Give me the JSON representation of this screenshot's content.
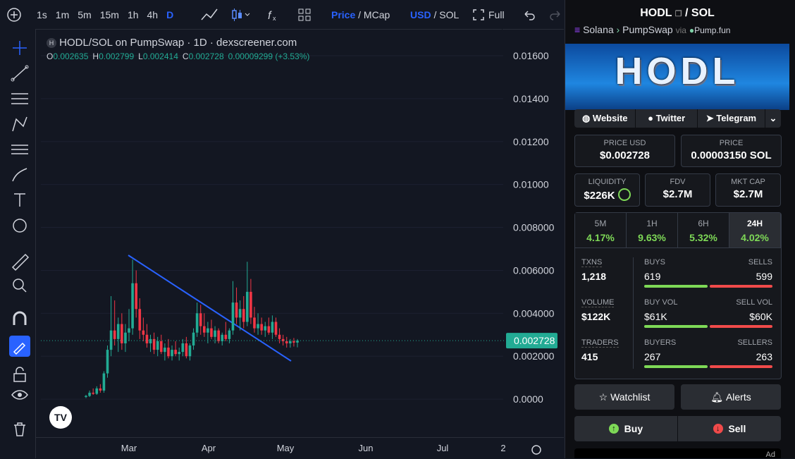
{
  "toolbar": {
    "intervals": [
      "1s",
      "1m",
      "5m",
      "15m",
      "1h",
      "4h",
      "D"
    ],
    "price": "Price",
    "price_sep": "/",
    "mcap": "MCap",
    "usd": "USD",
    "currency_sep": "/",
    "sol": "SOL",
    "full": "Full"
  },
  "chart": {
    "type": "candlestick",
    "title": "HODL/SOL on PumpSwap · 1D · dexscreener.com",
    "ohlc_labels": [
      "O",
      "H",
      "L",
      "C"
    ],
    "change": "0.00009299 (+3.53%)",
    "candles": [
      [
        0.0001,
        0.0002,
        5e-05,
        0.00015
      ],
      [
        0.00015,
        0.0004,
        0.0001,
        0.0003
      ],
      [
        0.0003,
        0.0005,
        0.0002,
        0.00025
      ],
      [
        0.00025,
        0.0006,
        0.0002,
        0.0005
      ],
      [
        0.0005,
        0.0007,
        0.0003,
        0.0004
      ],
      [
        0.0004,
        0.0013,
        0.0003,
        0.0012
      ],
      [
        0.0012,
        0.0025,
        0.001,
        0.0023
      ],
      [
        0.0023,
        0.0048,
        0.002,
        0.0032
      ],
      [
        0.0032,
        0.0046,
        0.0025,
        0.0028
      ],
      [
        0.0028,
        0.0038,
        0.0022,
        0.0035
      ],
      [
        0.0035,
        0.004,
        0.0023,
        0.0026
      ],
      [
        0.0026,
        0.0035,
        0.0022,
        0.0031
      ],
      [
        0.0031,
        0.0042,
        0.0027,
        0.0033
      ],
      [
        0.0033,
        0.0065,
        0.003,
        0.0054
      ],
      [
        0.0054,
        0.006,
        0.0038,
        0.0042
      ],
      [
        0.0042,
        0.0047,
        0.0028,
        0.0032
      ],
      [
        0.0032,
        0.0038,
        0.0027,
        0.003
      ],
      [
        0.003,
        0.0035,
        0.0024,
        0.0026
      ],
      [
        0.0026,
        0.003,
        0.0022,
        0.0028
      ],
      [
        0.0028,
        0.0031,
        0.0021,
        0.0023
      ],
      [
        0.0023,
        0.0029,
        0.002,
        0.0027
      ],
      [
        0.0027,
        0.003,
        0.0021,
        0.0022
      ],
      [
        0.0022,
        0.0026,
        0.0018,
        0.0024
      ],
      [
        0.0024,
        0.0028,
        0.0019,
        0.002
      ],
      [
        0.002,
        0.0025,
        0.0018,
        0.0023
      ],
      [
        0.0023,
        0.0027,
        0.002,
        0.0021
      ],
      [
        0.0021,
        0.0024,
        0.0018,
        0.0022
      ],
      [
        0.0022,
        0.0028,
        0.002,
        0.0026
      ],
      [
        0.0026,
        0.0029,
        0.0019,
        0.002
      ],
      [
        0.002,
        0.0026,
        0.0018,
        0.0025
      ],
      [
        0.0025,
        0.0033,
        0.0023,
        0.0031
      ],
      [
        0.0031,
        0.0045,
        0.0029,
        0.004
      ],
      [
        0.004,
        0.0044,
        0.003,
        0.0034
      ],
      [
        0.0034,
        0.004,
        0.0029,
        0.0031
      ],
      [
        0.0031,
        0.0036,
        0.0026,
        0.0033
      ],
      [
        0.0033,
        0.0037,
        0.0028,
        0.0029
      ],
      [
        0.0029,
        0.0034,
        0.0026,
        0.0032
      ],
      [
        0.0032,
        0.0033,
        0.0026,
        0.0027
      ],
      [
        0.0027,
        0.0031,
        0.0025,
        0.003
      ],
      [
        0.003,
        0.0036,
        0.0027,
        0.0028
      ],
      [
        0.0028,
        0.0033,
        0.0026,
        0.0032
      ],
      [
        0.0032,
        0.0055,
        0.003,
        0.0045
      ],
      [
        0.0045,
        0.0052,
        0.0035,
        0.0038
      ],
      [
        0.0038,
        0.0046,
        0.0032,
        0.0042
      ],
      [
        0.0042,
        0.0048,
        0.0033,
        0.0036
      ],
      [
        0.0036,
        0.0064,
        0.0034,
        0.005
      ],
      [
        0.005,
        0.0056,
        0.0035,
        0.0038
      ],
      [
        0.0038,
        0.0043,
        0.0031,
        0.0033
      ],
      [
        0.0033,
        0.004,
        0.003,
        0.0035
      ],
      [
        0.0035,
        0.0038,
        0.003,
        0.0032
      ],
      [
        0.0032,
        0.0036,
        0.0029,
        0.0034
      ],
      [
        0.0034,
        0.0038,
        0.003,
        0.0031
      ],
      [
        0.0031,
        0.0039,
        0.0028,
        0.0036
      ],
      [
        0.0036,
        0.0038,
        0.0029,
        0.003
      ],
      [
        0.003,
        0.0033,
        0.0026,
        0.0028
      ],
      [
        0.0028,
        0.003,
        0.0025,
        0.0027
      ],
      [
        0.0027,
        0.0029,
        0.0024,
        0.0026
      ],
      [
        0.0026,
        0.0028,
        0.0024,
        0.0027
      ],
      [
        0.0027,
        0.00285,
        0.00245,
        0.002635
      ],
      [
        0.002635,
        0.002799,
        0.002414,
        0.002728
      ]
    ],
    "ylim": [
      -0.00177,
      0.01715
    ],
    "yticks": [
      {
        "value": 0,
        "label": "0.0000"
      },
      {
        "value": 0.002,
        "label": "0.002000"
      },
      {
        "value": 0.004,
        "label": "0.004000"
      },
      {
        "value": 0.006,
        "label": "0.006000"
      },
      {
        "value": 0.008,
        "label": "0.008000"
      },
      {
        "value": 0.01,
        "label": "0.01000"
      },
      {
        "value": 0.012,
        "label": "0.01200"
      },
      {
        "value": 0.014,
        "label": "0.01400"
      },
      {
        "value": 0.016,
        "label": "0.01600"
      }
    ],
    "x_labels": [
      "Mar",
      "Apr",
      "May",
      "Jun",
      "Jul",
      "2"
    ],
    "colors": {
      "up": "#22ab94",
      "down": "#f23645"
    },
    "grid": true
  },
  "pair": {
    "name": "HODL",
    "sep": "/",
    "quote": "SOL",
    "chain": "Solana",
    "dex": "PumpSwap",
    "via": "via",
    "launchpad": "Pump.fun",
    "banner": "HODL"
  },
  "links": [
    "Website",
    "Twitter",
    "Telegram"
  ],
  "price_usd": {
    "label": "PRICE USD",
    "value": "$0.002728"
  },
  "price": {
    "label": "PRICE",
    "value": "0.00003150 SOL"
  },
  "stats": [
    {
      "label": "LIQUIDITY",
      "value": "$226K"
    },
    {
      "label": "FDV",
      "value": "$2.7M"
    },
    {
      "label": "MKT CAP",
      "value": "$2.7M"
    }
  ],
  "periods": [
    {
      "label": "5M",
      "value": "4.17%"
    },
    {
      "label": "1H",
      "value": "9.63%"
    },
    {
      "label": "6H",
      "value": "5.32%"
    },
    {
      "label": "24H",
      "value": "4.02%"
    }
  ],
  "rows": [
    {
      "label": "TXNS",
      "total": "1,218",
      "left_label": "BUYS",
      "left": "619",
      "right_label": "SELLS",
      "right": "599"
    },
    {
      "label": "VOLUME",
      "total": "$122K",
      "left_label": "BUY VOL",
      "left": "$61K",
      "right_label": "SELL VOL",
      "right": "$60K"
    },
    {
      "label": "TRADERS",
      "total": "415",
      "left_label": "BUYERS",
      "left": "267",
      "right_label": "SELLERS",
      "right": "263"
    }
  ],
  "buttons": {
    "watchlist": "Watchlist",
    "alerts": "Alerts",
    "buy": "Buy",
    "sell": "Sell"
  },
  "ad": "Ad"
}
